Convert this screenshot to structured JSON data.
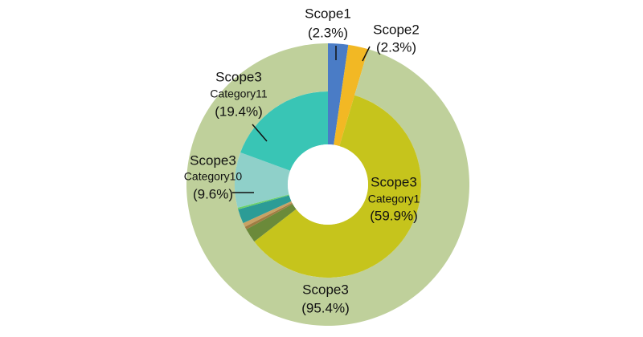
{
  "chart_data": {
    "type": "nested-donut",
    "rings": [
      {
        "categories": [
          "Scope1",
          "Scope2",
          "Scope3"
        ],
        "values": [
          2.3,
          2.3,
          95.4
        ],
        "value_labels": [
          "(2.3%)",
          "(2.3%)",
          "(95.4%)"
        ],
        "colors": [
          "#4a7cc6",
          "#f2b824",
          "#bfd09b"
        ]
      },
      {
        "parent": "Scope3",
        "groups": [
          "Scope3",
          null,
          null,
          null,
          null,
          null,
          "Scope3",
          "Scope3"
        ],
        "categories": [
          "Category1",
          null,
          null,
          null,
          null,
          null,
          "Category10",
          "Category11"
        ],
        "values": [
          59.9,
          2.5,
          0.5,
          0.7,
          2.5,
          0.3,
          9.6,
          19.4
        ],
        "value_labels": [
          "(59.9%)",
          null,
          null,
          null,
          null,
          null,
          "(9.6%)",
          "(19.4%)"
        ],
        "colors": [
          "#c6c41c",
          "#6b8a3a",
          "#a07c42",
          "#c8a264",
          "#2c9c96",
          "#6ad06a",
          "#8fd0c9",
          "#39c5b5"
        ]
      }
    ]
  }
}
